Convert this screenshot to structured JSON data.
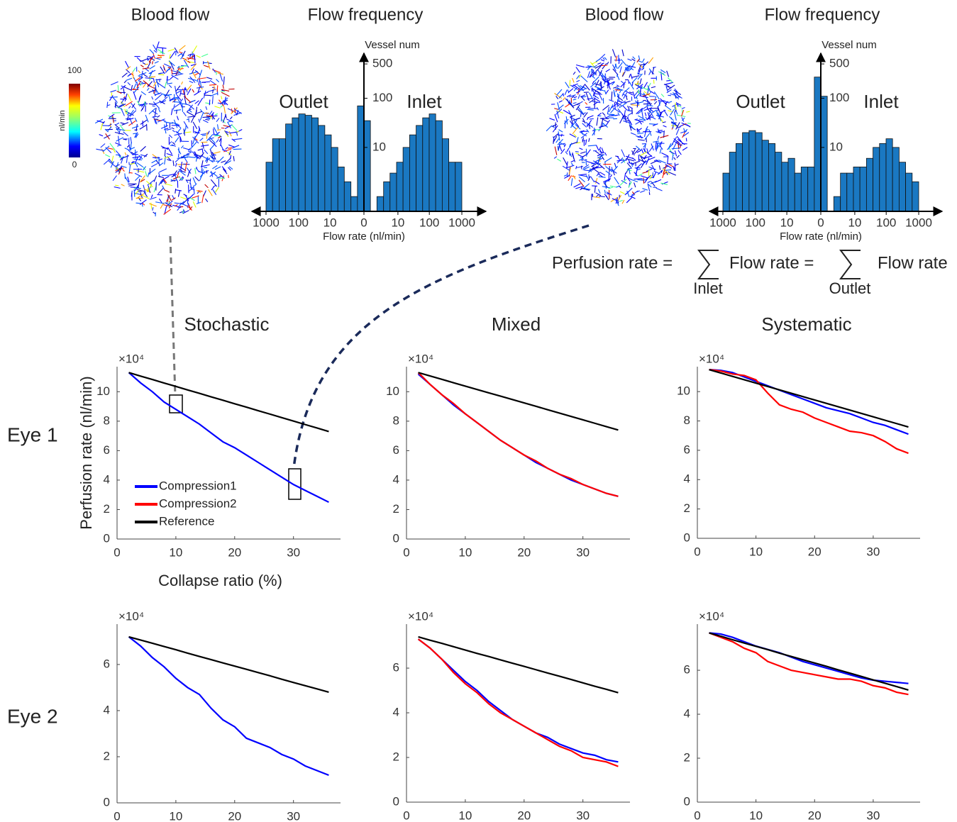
{
  "figure": {
    "top_titles": [
      "Blood flow",
      "Blood flow"
    ],
    "column_titles": [
      "Stochastic",
      "Mixed",
      "Systematic"
    ],
    "row_labels": [
      "Eye 1",
      "Eye 2"
    ],
    "colorbar": {
      "max": "100",
      "min": "0",
      "label": "nl/min"
    },
    "formula": {
      "left": "Perfusion rate =",
      "middle": "Flow rate =",
      "right": "Flow rate",
      "sum1": "Inlet",
      "sum2": "Outlet"
    }
  },
  "chart_data": [
    {
      "type": "histogram",
      "title": "Flow frequency",
      "xlabel": "Flow rate (nl/min)",
      "ylabel": "Vessel num",
      "annotations": [
        "Outlet",
        "Inlet"
      ],
      "color": "#1a78c2",
      "xscale": "symlog",
      "yscale": "log",
      "bins": [
        -999,
        -630,
        -397,
        -250,
        -157,
        -99,
        -62,
        -38.8,
        -24.1,
        -14.8,
        -9,
        -5.3,
        -3,
        -1.5,
        -0.58,
        0,
        0.58,
        1.5,
        3,
        5.3,
        9,
        14.8,
        24.1,
        38.8,
        62,
        99,
        157,
        250,
        397,
        630,
        999
      ],
      "values": [
        5,
        15,
        15,
        30,
        40,
        48,
        45,
        40,
        28,
        18,
        10,
        4,
        2,
        1,
        70,
        35,
        0,
        1,
        2,
        3,
        5,
        10,
        18,
        28,
        40,
        48,
        35,
        15,
        5,
        5
      ],
      "xticks": [
        {
          "value": -1000,
          "label": "1000"
        },
        {
          "value": -100,
          "label": "100"
        },
        {
          "value": -10,
          "label": "10"
        },
        0,
        10,
        100,
        1000
      ],
      "ylim": [
        0.5,
        700
      ],
      "yticks": [
        10,
        100,
        500
      ]
    },
    {
      "type": "histogram",
      "title": "Flow frequency",
      "xlabel": "Flow rate (nl/min)",
      "ylabel": "Vessel num",
      "annotations": [
        "Outlet",
        "Inlet"
      ],
      "color": "#1a78c2",
      "xscale": "symlog",
      "yscale": "log",
      "bins": [
        -999,
        -630,
        -397,
        -250,
        -157,
        -99,
        -62,
        -38.8,
        -24.1,
        -14.8,
        -9,
        -5.3,
        -3,
        -1.5,
        -0.58,
        0,
        0.58,
        1.5,
        3,
        5.3,
        9,
        14.8,
        24.1,
        38.8,
        62,
        99,
        157,
        250,
        397,
        630,
        999
      ],
      "values": [
        3,
        8,
        12,
        20,
        22,
        20,
        14,
        12,
        8,
        5,
        6,
        3,
        4,
        4,
        270,
        110,
        0,
        1,
        3,
        3,
        4,
        4,
        6,
        10,
        12,
        15,
        10,
        5,
        3,
        2
      ],
      "xticks": [
        {
          "value": -1000,
          "label": "1000"
        },
        {
          "value": -100,
          "label": "100"
        },
        {
          "value": -10,
          "label": "10"
        },
        0,
        10,
        100,
        1000
      ],
      "ylim": [
        0.5,
        700
      ],
      "yticks": [
        10,
        100,
        500
      ]
    },
    {
      "type": "line",
      "title": "Stochastic",
      "xlabel": "Collapse ratio (%)",
      "ylabel": "Perfusion rate (nl/min)",
      "y_multiplier": "×10⁴",
      "legend": "lower left",
      "x": [
        2,
        4,
        6,
        8,
        10,
        12,
        14,
        16,
        18,
        20,
        22,
        24,
        26,
        28,
        30,
        32,
        34,
        36
      ],
      "series": [
        {
          "name": "Compression1",
          "color": "#0000ff",
          "values": [
            11.3,
            10.6,
            10.0,
            9.3,
            8.8,
            8.3,
            7.8,
            7.2,
            6.6,
            6.2,
            5.7,
            5.2,
            4.7,
            4.2,
            3.7,
            3.3,
            2.9,
            2.5
          ]
        },
        {
          "name": "Compression2",
          "color": "#ff0000",
          "values": [
            null,
            null,
            null,
            null,
            null,
            null,
            null,
            null,
            null,
            null,
            null,
            null,
            null,
            null,
            null,
            null,
            null,
            null
          ]
        },
        {
          "name": "Reference",
          "color": "#000000",
          "values": [
            11.3,
            11.06,
            10.83,
            10.59,
            10.36,
            10.12,
            9.89,
            9.65,
            9.42,
            9.18,
            8.95,
            8.71,
            8.48,
            8.24,
            8.01,
            7.77,
            7.54,
            7.3
          ]
        }
      ],
      "xlim": [
        0,
        38
      ],
      "xticks": [
        0,
        10,
        20,
        30
      ],
      "ylim": [
        0,
        11.7
      ],
      "yticks": [
        0,
        2,
        4,
        6,
        8,
        10
      ]
    },
    {
      "type": "line",
      "title": "Mixed",
      "y_multiplier": "×10⁴",
      "x": [
        2,
        4,
        6,
        8,
        10,
        12,
        14,
        16,
        18,
        20,
        22,
        24,
        26,
        28,
        30,
        32,
        34,
        36
      ],
      "series": [
        {
          "color": "#0000ff",
          "values": [
            11.2,
            10.5,
            9.8,
            9.1,
            8.5,
            7.9,
            7.3,
            6.7,
            6.2,
            5.7,
            5.2,
            4.8,
            4.4,
            4.0,
            3.7,
            3.4,
            3.1,
            2.9
          ]
        },
        {
          "color": "#ff0000",
          "values": [
            11.3,
            10.5,
            9.8,
            9.2,
            8.5,
            7.9,
            7.3,
            6.7,
            6.2,
            5.7,
            5.3,
            4.8,
            4.4,
            4.1,
            3.7,
            3.4,
            3.1,
            2.9
          ]
        },
        {
          "color": "#000000",
          "values": [
            11.3,
            11.07,
            10.84,
            10.61,
            10.38,
            10.15,
            9.92,
            9.7,
            9.47,
            9.24,
            9.01,
            8.78,
            8.55,
            8.32,
            8.09,
            7.86,
            7.63,
            7.4
          ]
        }
      ],
      "xlim": [
        0,
        38
      ],
      "xticks": [
        0,
        10,
        20,
        30
      ],
      "ylim": [
        0,
        11.7
      ],
      "yticks": [
        0,
        2,
        4,
        6,
        8,
        10
      ]
    },
    {
      "type": "line",
      "title": "Systematic",
      "y_multiplier": "×10⁴",
      "x": [
        2,
        4,
        6,
        8,
        10,
        12,
        14,
        16,
        18,
        20,
        22,
        24,
        26,
        28,
        30,
        32,
        34,
        36
      ],
      "series": [
        {
          "color": "#0000ff",
          "values": [
            11.5,
            11.45,
            11.3,
            11.0,
            10.7,
            10.4,
            10.1,
            9.8,
            9.5,
            9.2,
            8.9,
            8.7,
            8.5,
            8.2,
            7.9,
            7.7,
            7.4,
            7.1
          ]
        },
        {
          "color": "#ff0000",
          "values": [
            11.5,
            11.4,
            11.2,
            11.1,
            10.8,
            9.9,
            9.1,
            8.8,
            8.6,
            8.2,
            7.9,
            7.6,
            7.3,
            7.2,
            7.0,
            6.6,
            6.1,
            5.8
          ]
        },
        {
          "color": "#000000",
          "values": [
            11.5,
            11.27,
            11.04,
            10.81,
            10.58,
            10.35,
            10.12,
            9.89,
            9.66,
            9.43,
            9.2,
            8.97,
            8.74,
            8.51,
            8.28,
            8.05,
            7.82,
            7.59
          ]
        }
      ],
      "xlim": [
        0,
        38
      ],
      "xticks": [
        0,
        10,
        20,
        30
      ],
      "ylim": [
        0,
        11.7
      ],
      "yticks": [
        0,
        2,
        4,
        6,
        8,
        10
      ]
    },
    {
      "type": "line",
      "y_multiplier": "×10⁴",
      "x": [
        2,
        4,
        6,
        8,
        10,
        12,
        14,
        16,
        18,
        20,
        22,
        24,
        26,
        28,
        30,
        32,
        34,
        36
      ],
      "series": [
        {
          "color": "#0000ff",
          "values": [
            7.2,
            6.8,
            6.3,
            5.9,
            5.4,
            5.0,
            4.7,
            4.1,
            3.6,
            3.3,
            2.8,
            2.6,
            2.4,
            2.1,
            1.9,
            1.6,
            1.4,
            1.2
          ]
        },
        {
          "color": "#000000",
          "values": [
            7.2,
            7.06,
            6.92,
            6.78,
            6.64,
            6.49,
            6.35,
            6.21,
            6.07,
            5.93,
            5.79,
            5.65,
            5.51,
            5.36,
            5.22,
            5.08,
            4.94,
            4.8
          ]
        }
      ],
      "xlim": [
        0,
        38
      ],
      "xticks": [
        0,
        10,
        20,
        30
      ],
      "ylim": [
        0,
        7.75
      ],
      "yticks": [
        0,
        2,
        4,
        6
      ]
    },
    {
      "type": "line",
      "y_multiplier": "×10⁴",
      "x": [
        2,
        4,
        6,
        8,
        10,
        12,
        14,
        16,
        18,
        20,
        22,
        24,
        26,
        28,
        30,
        32,
        34,
        36
      ],
      "series": [
        {
          "color": "#0000ff",
          "values": [
            7.3,
            6.9,
            6.4,
            5.9,
            5.4,
            5.0,
            4.5,
            4.1,
            3.7,
            3.4,
            3.1,
            2.9,
            2.6,
            2.4,
            2.2,
            2.1,
            1.9,
            1.8
          ]
        },
        {
          "color": "#ff0000",
          "values": [
            7.3,
            6.9,
            6.4,
            5.8,
            5.3,
            4.9,
            4.4,
            4.0,
            3.7,
            3.4,
            3.1,
            2.8,
            2.5,
            2.3,
            2.0,
            1.9,
            1.8,
            1.6
          ]
        },
        {
          "color": "#000000",
          "values": [
            7.4,
            7.25,
            7.11,
            6.96,
            6.81,
            6.66,
            6.52,
            6.37,
            6.22,
            6.08,
            5.93,
            5.78,
            5.64,
            5.49,
            5.34,
            5.19,
            5.05,
            4.9
          ]
        }
      ],
      "xlim": [
        0,
        38
      ],
      "xticks": [
        0,
        10,
        20,
        30
      ],
      "ylim": [
        0,
        7.97
      ],
      "yticks": [
        0,
        2,
        4,
        6
      ]
    },
    {
      "type": "line",
      "y_multiplier": "×10⁴",
      "x": [
        2,
        4,
        6,
        8,
        10,
        12,
        14,
        16,
        18,
        20,
        22,
        24,
        26,
        28,
        30,
        32,
        34,
        36
      ],
      "series": [
        {
          "color": "#0000ff",
          "values": [
            7.7,
            7.65,
            7.5,
            7.3,
            7.1,
            6.95,
            6.8,
            6.6,
            6.4,
            6.25,
            6.1,
            5.95,
            5.8,
            5.65,
            5.55,
            5.5,
            5.45,
            5.4
          ]
        },
        {
          "color": "#ff0000",
          "values": [
            7.7,
            7.5,
            7.3,
            7.0,
            6.8,
            6.4,
            6.2,
            6.0,
            5.9,
            5.8,
            5.7,
            5.6,
            5.6,
            5.5,
            5.3,
            5.2,
            5.0,
            4.9
          ]
        },
        {
          "color": "#000000",
          "values": [
            7.7,
            7.55,
            7.39,
            7.24,
            7.09,
            6.94,
            6.78,
            6.63,
            6.48,
            6.33,
            6.18,
            6.02,
            5.87,
            5.72,
            5.56,
            5.41,
            5.26,
            5.1
          ]
        }
      ],
      "xlim": [
        0,
        38
      ],
      "xticks": [
        0,
        10,
        20,
        30
      ],
      "ylim": [
        0,
        8.1
      ],
      "yticks": [
        0,
        2,
        4,
        6
      ]
    }
  ]
}
